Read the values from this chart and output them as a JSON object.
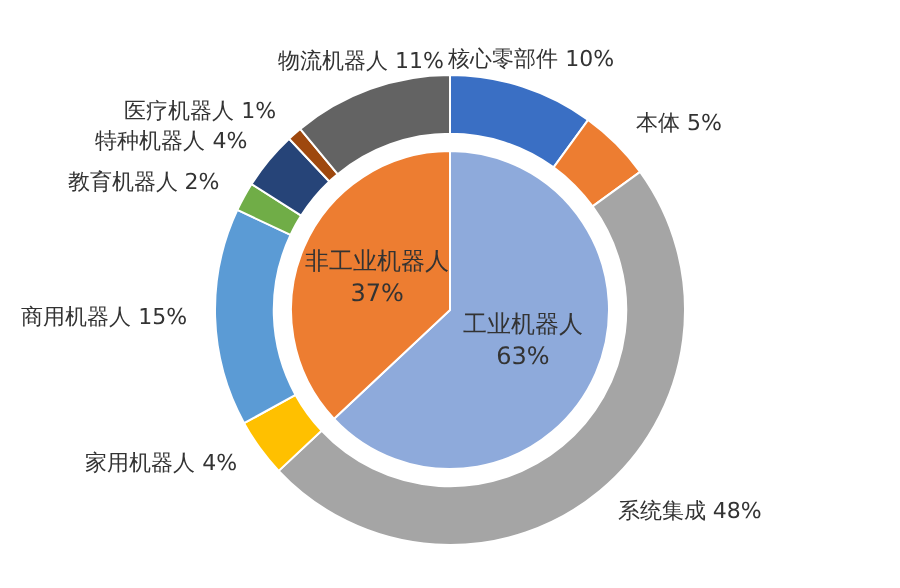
{
  "chart_data": [
    {
      "type": "donut",
      "categories": [
        "核心零部件",
        "本体",
        "系统集成",
        "家用机器人",
        "商用机器人",
        "教育机器人",
        "特种机器人",
        "医疗机器人",
        "物流机器人"
      ],
      "values": [
        10,
        5,
        48,
        4,
        15,
        2,
        4,
        1,
        11
      ],
      "value_labels": [
        "10%",
        "5%",
        "48%",
        "4%",
        "15%",
        "2%",
        "4%",
        "1%",
        "11%"
      ],
      "colors": [
        "#3a6fc4",
        "#ed7d31",
        "#a5a5a5",
        "#ffc000",
        "#5b9bd5",
        "#70ad47",
        "#264478",
        "#9e480e",
        "#636363"
      ],
      "legend": false
    },
    {
      "type": "pie",
      "categories": [
        "工业机器人",
        "非工业机器人"
      ],
      "values": [
        63,
        37
      ],
      "value_labels": [
        "63%",
        "37%"
      ],
      "colors": [
        "#8eaadb",
        "#ed7d31"
      ],
      "legend": false
    }
  ]
}
